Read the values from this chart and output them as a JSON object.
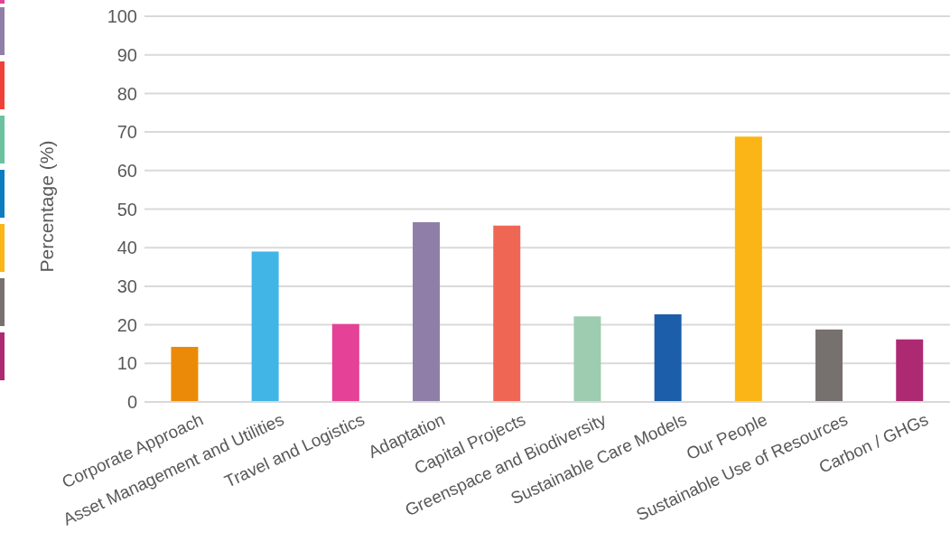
{
  "chart_data": {
    "type": "bar",
    "ylabel": "Percentage (%)",
    "categories": [
      "Corporate Approach",
      "Asset Management and Utilities",
      "Travel and Logistics",
      "Adaptation",
      "Capital Projects",
      "Greenspace and Biodiversity",
      "Sustainable Care Models",
      "Our People",
      "Sustainable Use of Resources",
      "Carbon / GHGs"
    ],
    "values": [
      14.3,
      39.0,
      20.2,
      46.6,
      45.7,
      22.2,
      22.7,
      68.8,
      18.8,
      16.2
    ],
    "colors": [
      "#eb8a08",
      "#41b6e6",
      "#e54196",
      "#8f7fa8",
      "#f06655",
      "#9dccb1",
      "#1c5ea9",
      "#fbb516",
      "#76716f",
      "#ad2a72"
    ],
    "ylim": [
      0,
      100
    ],
    "yticks": [
      0,
      10,
      20,
      30,
      40,
      50,
      60,
      70,
      80,
      90,
      100
    ],
    "grid": "y"
  }
}
